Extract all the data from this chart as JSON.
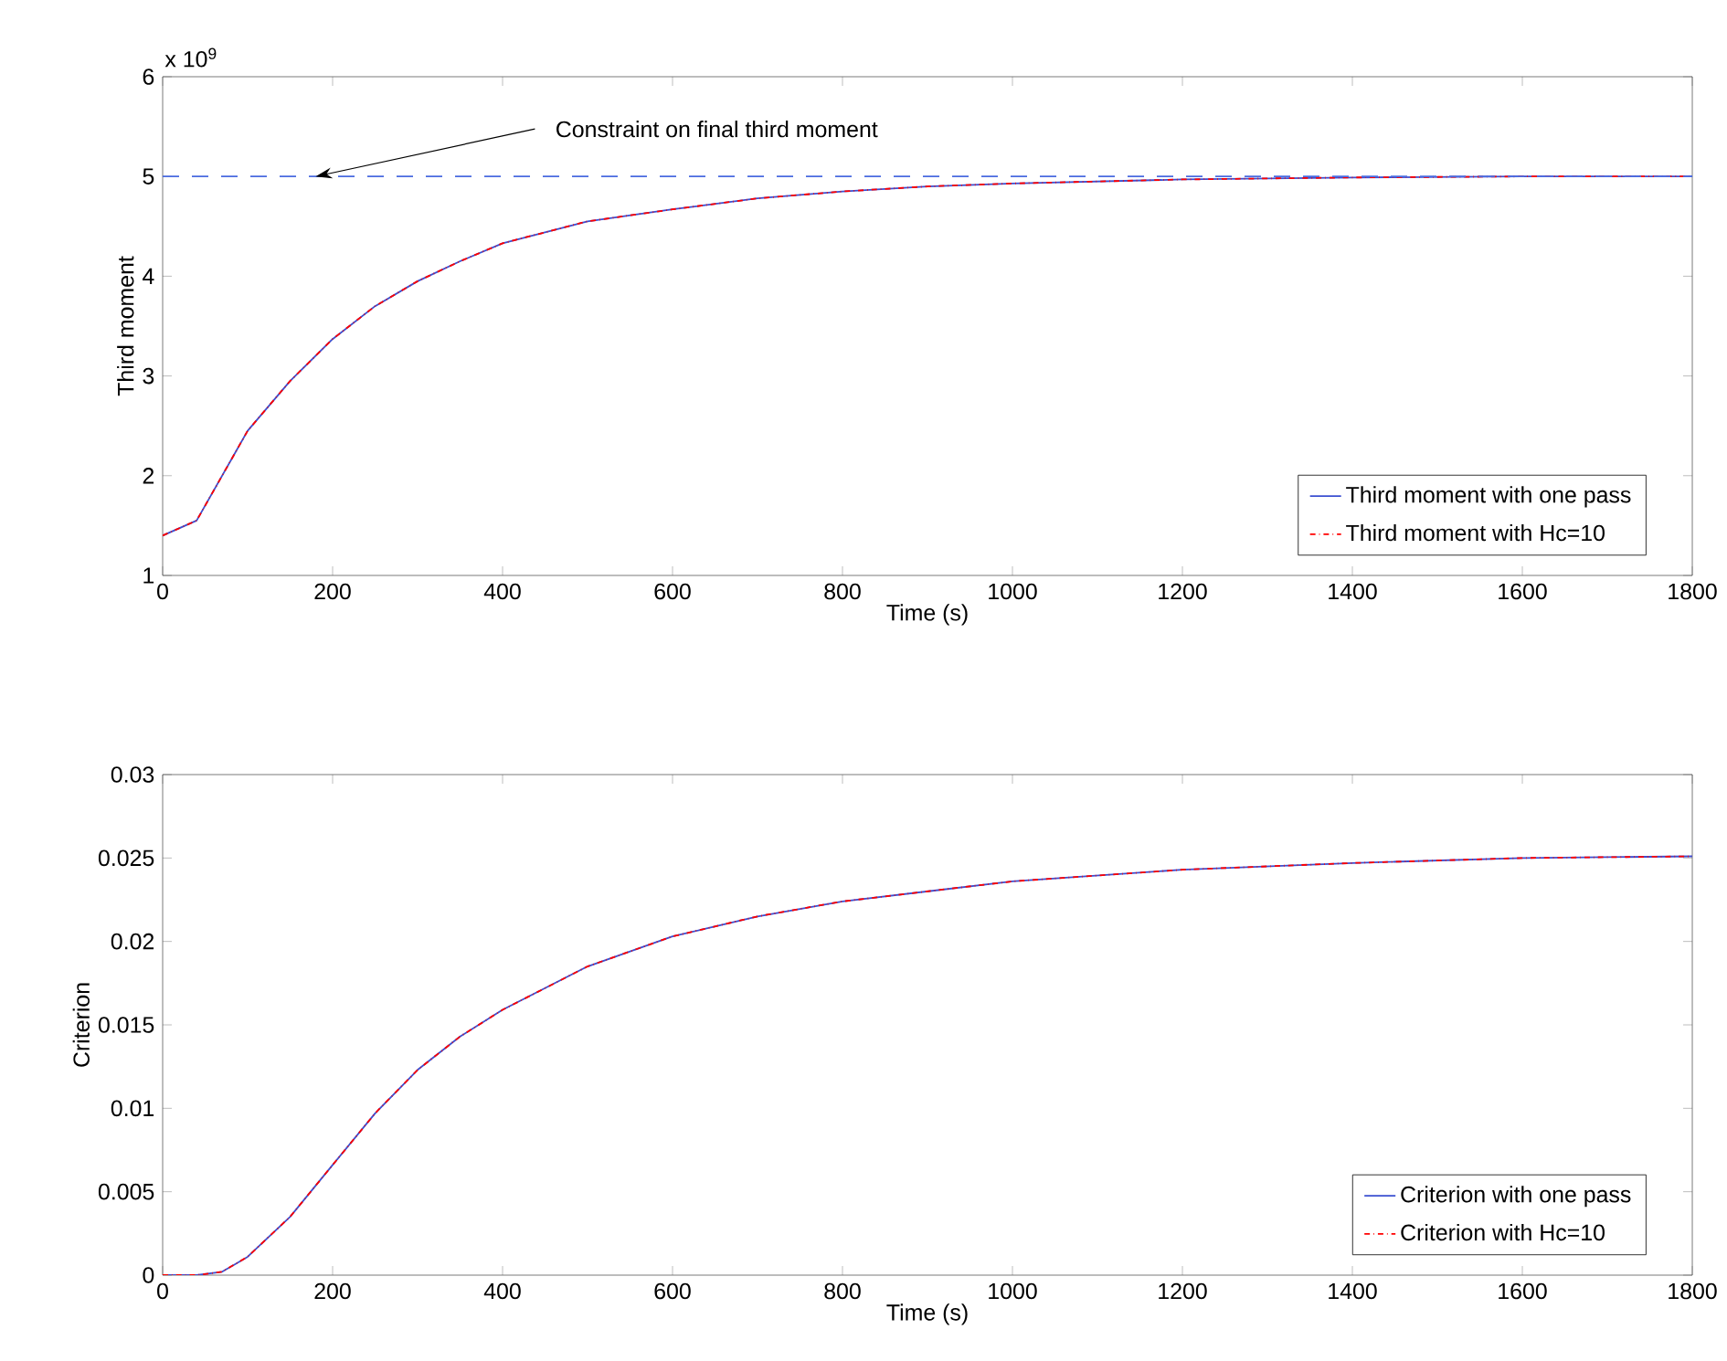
{
  "chart_data": [
    {
      "type": "line",
      "xlabel": "Time (s)",
      "ylabel": "Third moment",
      "x": [
        0,
        40,
        70,
        100,
        150,
        200,
        250,
        300,
        350,
        400,
        500,
        600,
        700,
        800,
        900,
        1000,
        1200,
        1400,
        1600,
        1800
      ],
      "series": [
        {
          "name": "Third moment with one pass",
          "color": "#3b4fd0",
          "line_style": "solid",
          "values": [
            1.4,
            1.55,
            2.0,
            2.45,
            2.95,
            3.37,
            3.7,
            3.95,
            4.15,
            4.33,
            4.55,
            4.67,
            4.78,
            4.85,
            4.9,
            4.93,
            4.97,
            4.99,
            5.0,
            5.0
          ]
        },
        {
          "name": "Third moment with Hc=10",
          "color": "#ff0000",
          "line_style": "dashdot",
          "values": [
            1.4,
            1.55,
            2.0,
            2.45,
            2.95,
            3.37,
            3.7,
            3.95,
            4.15,
            4.33,
            4.55,
            4.67,
            4.78,
            4.85,
            4.9,
            4.93,
            4.97,
            4.99,
            5.0,
            5.0
          ]
        }
      ],
      "xlim": [
        0,
        1800
      ],
      "xticks": [
        0,
        200,
        400,
        600,
        800,
        1000,
        1200,
        1400,
        1600,
        1800
      ],
      "ylim": [
        1,
        6
      ],
      "yticks": [
        1,
        2,
        3,
        4,
        5,
        6
      ],
      "ref_lines": [
        {
          "axis": "y",
          "value": 5,
          "color": "#4a6be0",
          "line_style": "dashed"
        }
      ],
      "annotations": [
        "x 10$^{9}$",
        {
          "text": "Constraint on final third moment",
          "x": 180,
          "y": 5
        }
      ],
      "legend": "bottom right",
      "grid": false
    },
    {
      "type": "line",
      "xlabel": "Time (s)",
      "ylabel": "Criterion",
      "x": [
        0,
        40,
        70,
        100,
        150,
        200,
        250,
        300,
        350,
        400,
        500,
        600,
        700,
        800,
        1000,
        1200,
        1400,
        1600,
        1800
      ],
      "series": [
        {
          "name": "Criterion with one pass",
          "color": "#3b4fd0",
          "line_style": "solid",
          "values": [
            0,
            0,
            0.0002,
            0.0011,
            0.0035,
            0.0066,
            0.0097,
            0.0123,
            0.0143,
            0.0159,
            0.0185,
            0.0203,
            0.0215,
            0.0224,
            0.0236,
            0.0243,
            0.0247,
            0.025,
            0.0251
          ]
        },
        {
          "name": "Criterion with Hc=10",
          "color": "#ff0000",
          "line_style": "dashdot",
          "values": [
            0,
            0,
            0.0002,
            0.0011,
            0.0035,
            0.0066,
            0.0097,
            0.0123,
            0.0143,
            0.0159,
            0.0185,
            0.0203,
            0.0215,
            0.0224,
            0.0236,
            0.0243,
            0.0247,
            0.025,
            0.0251
          ]
        }
      ],
      "xlim": [
        0,
        1800
      ],
      "xticks": [
        0,
        200,
        400,
        600,
        800,
        1000,
        1200,
        1400,
        1600,
        1800
      ],
      "ylim": [
        0,
        0.03
      ],
      "yticks": [
        0,
        0.005,
        0.01,
        0.015,
        0.02,
        0.025,
        0.03
      ],
      "legend": "bottom right",
      "grid": false
    }
  ]
}
